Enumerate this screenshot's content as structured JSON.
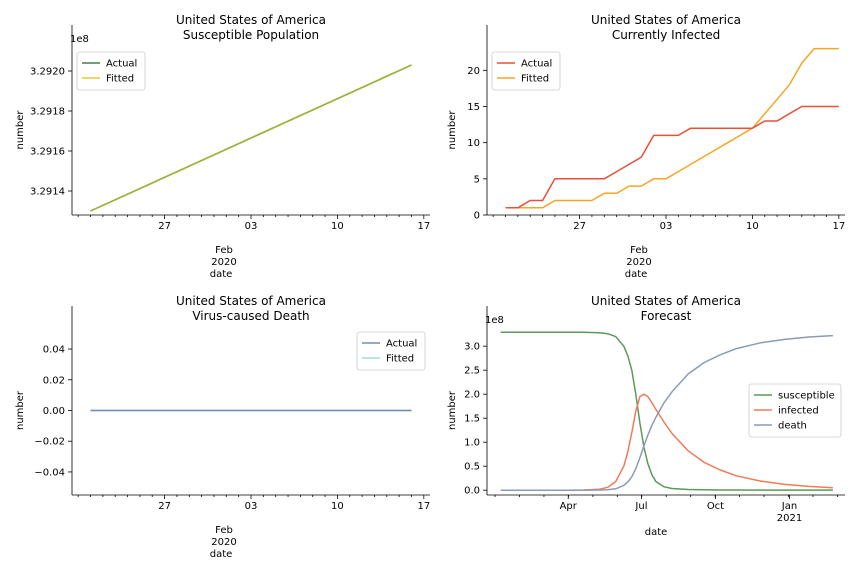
{
  "chart_data": [
    {
      "type": "line",
      "title": "United States of America",
      "subtitle": "Susceptible Population",
      "xlabel": "date",
      "ylabel": "number",
      "y_scale_label": "1e8",
      "ylim": [
        3.29128,
        3.29213
      ],
      "y_ticks": [
        3.2914,
        3.2916,
        3.2918,
        3.292
      ],
      "y_tick_labels": [
        "3.2914",
        "3.2916",
        "3.2918",
        "3.2920"
      ],
      "x_domain": [
        19.5,
        48.5
      ],
      "x_ticks": [
        27,
        34,
        41,
        48
      ],
      "x_tick_labels": [
        "27",
        "03",
        "10",
        "17"
      ],
      "x_sublabel": [
        "Feb",
        "2020"
      ],
      "legend_position": "upper-left",
      "series": [
        {
          "name": "Actual",
          "color": "#4f7a4f",
          "x": [
            21,
            47
          ],
          "values": [
            3.2913,
            3.29203
          ]
        },
        {
          "name": "Fitted",
          "color": "#e3cc33",
          "x": [
            21,
            47
          ],
          "values": [
            3.2913,
            3.29203
          ]
        }
      ]
    },
    {
      "type": "line",
      "title": "United States of America",
      "subtitle": "Currently Infected",
      "xlabel": "date",
      "ylabel": "number",
      "ylim": [
        0,
        23.5
      ],
      "y_ticks": [
        0,
        5,
        10,
        15,
        20
      ],
      "y_tick_labels": [
        "0",
        "5",
        "10",
        "15",
        "20"
      ],
      "x_domain": [
        19.5,
        48.5
      ],
      "x_ticks": [
        27,
        34,
        41,
        48
      ],
      "x_tick_labels": [
        "27",
        "03",
        "10",
        "17"
      ],
      "x_sublabel": [
        "Feb",
        "2020"
      ],
      "legend_position": "upper-left",
      "series": [
        {
          "name": "Actual",
          "color": "#e8503a",
          "x": [
            21,
            22,
            23,
            24,
            25,
            26,
            27,
            28,
            29,
            30,
            31,
            32,
            33,
            34,
            35,
            36,
            37,
            38,
            39,
            40,
            41,
            42,
            43,
            44,
            45,
            46,
            47,
            48
          ],
          "values": [
            1,
            1,
            2,
            2,
            5,
            5,
            5,
            5,
            5,
            6,
            7,
            8,
            11,
            11,
            11,
            12,
            12,
            12,
            12,
            12,
            12,
            13,
            13,
            14,
            15,
            15,
            15,
            15
          ]
        },
        {
          "name": "Fitted",
          "color": "#f5a623",
          "x": [
            21,
            22,
            23,
            24,
            25,
            26,
            27,
            28,
            29,
            30,
            31,
            32,
            33,
            34,
            35,
            36,
            37,
            38,
            39,
            40,
            41,
            42,
            43,
            44,
            45,
            46,
            47,
            48
          ],
          "values": [
            1,
            1,
            1,
            1,
            2,
            2,
            2,
            2,
            3,
            3,
            4,
            4,
            5,
            5,
            6,
            7,
            8,
            9,
            10,
            11,
            12,
            14,
            16,
            18,
            21,
            23,
            23,
            23
          ]
        }
      ]
    },
    {
      "type": "line",
      "title": "United States of America",
      "subtitle": "Virus-caused Death",
      "xlabel": "date",
      "ylabel": "number",
      "ylim": [
        -0.055,
        0.055
      ],
      "y_ticks": [
        -0.04,
        -0.02,
        0.0,
        0.02,
        0.04
      ],
      "y_tick_labels": [
        "−0.04",
        "−0.02",
        "0.00",
        "0.02",
        "0.04"
      ],
      "x_domain": [
        19.5,
        48.5
      ],
      "x_ticks": [
        27,
        34,
        41,
        48
      ],
      "x_tick_labels": [
        "27",
        "03",
        "10",
        "17"
      ],
      "x_sublabel": [
        "Feb",
        "2020"
      ],
      "legend_position": "upper-right",
      "series": [
        {
          "name": "Actual",
          "color": "#7a88b8",
          "x": [
            21,
            47
          ],
          "values": [
            0,
            0
          ]
        },
        {
          "name": "Fitted",
          "color": "#a8d8d8",
          "x": [
            21,
            47
          ],
          "values": [
            0,
            0
          ]
        }
      ]
    },
    {
      "type": "line",
      "title": "United States of America",
      "subtitle": "Forecast",
      "xlabel": "date",
      "ylabel": "number",
      "y_scale_label": "1e8",
      "ylim": [
        -0.1,
        3.42
      ],
      "y_ticks": [
        0.0,
        0.5,
        1.0,
        1.5,
        2.0,
        2.5,
        3.0
      ],
      "y_tick_labels": [
        "0.0",
        "0.5",
        "1.0",
        "1.5",
        "2.0",
        "2.5",
        "3.0"
      ],
      "x_domain": [
        -10,
        435
      ],
      "x_ticks": [
        91,
        182,
        274,
        366
      ],
      "x_tick_labels": [
        "Apr",
        "Jul",
        "Oct",
        "Jan"
      ],
      "x_sublabel": [
        "",
        "",
        "",
        "2021"
      ],
      "legend_position": "center-right",
      "series": [
        {
          "name": "susceptible",
          "color": "#5a9a5a",
          "x": [
            7,
            30,
            60,
            90,
            110,
            130,
            140,
            150,
            160,
            165,
            170,
            175,
            180,
            185,
            190,
            195,
            200,
            210,
            220,
            240,
            260,
            280,
            300,
            330,
            360,
            390,
            420
          ],
          "values": [
            3.29,
            3.29,
            3.29,
            3.29,
            3.29,
            3.28,
            3.26,
            3.2,
            3.0,
            2.8,
            2.5,
            2.0,
            1.4,
            0.9,
            0.55,
            0.32,
            0.18,
            0.07,
            0.035,
            0.015,
            0.008,
            0.005,
            0.004,
            0.003,
            0.003,
            0.003,
            0.003
          ]
        },
        {
          "name": "infected",
          "color": "#f07a5a",
          "x": [
            7,
            30,
            60,
            90,
            110,
            130,
            140,
            150,
            160,
            165,
            170,
            175,
            180,
            185,
            190,
            195,
            200,
            210,
            220,
            240,
            260,
            280,
            300,
            330,
            360,
            390,
            420
          ],
          "values": [
            0,
            0,
            0,
            0,
            0.005,
            0.02,
            0.06,
            0.18,
            0.5,
            0.8,
            1.2,
            1.65,
            1.95,
            2.0,
            1.95,
            1.82,
            1.68,
            1.42,
            1.18,
            0.82,
            0.58,
            0.42,
            0.3,
            0.19,
            0.12,
            0.08,
            0.05
          ]
        },
        {
          "name": "death",
          "color": "#8a9ab8",
          "x": [
            7,
            30,
            60,
            90,
            110,
            130,
            140,
            150,
            160,
            165,
            170,
            175,
            180,
            185,
            190,
            195,
            200,
            210,
            220,
            240,
            260,
            280,
            300,
            330,
            360,
            390,
            420
          ],
          "values": [
            0,
            0,
            0,
            0,
            0,
            0.005,
            0.01,
            0.03,
            0.1,
            0.17,
            0.28,
            0.45,
            0.68,
            0.92,
            1.15,
            1.35,
            1.52,
            1.82,
            2.05,
            2.42,
            2.66,
            2.82,
            2.95,
            3.07,
            3.14,
            3.19,
            3.22
          ]
        }
      ]
    }
  ]
}
